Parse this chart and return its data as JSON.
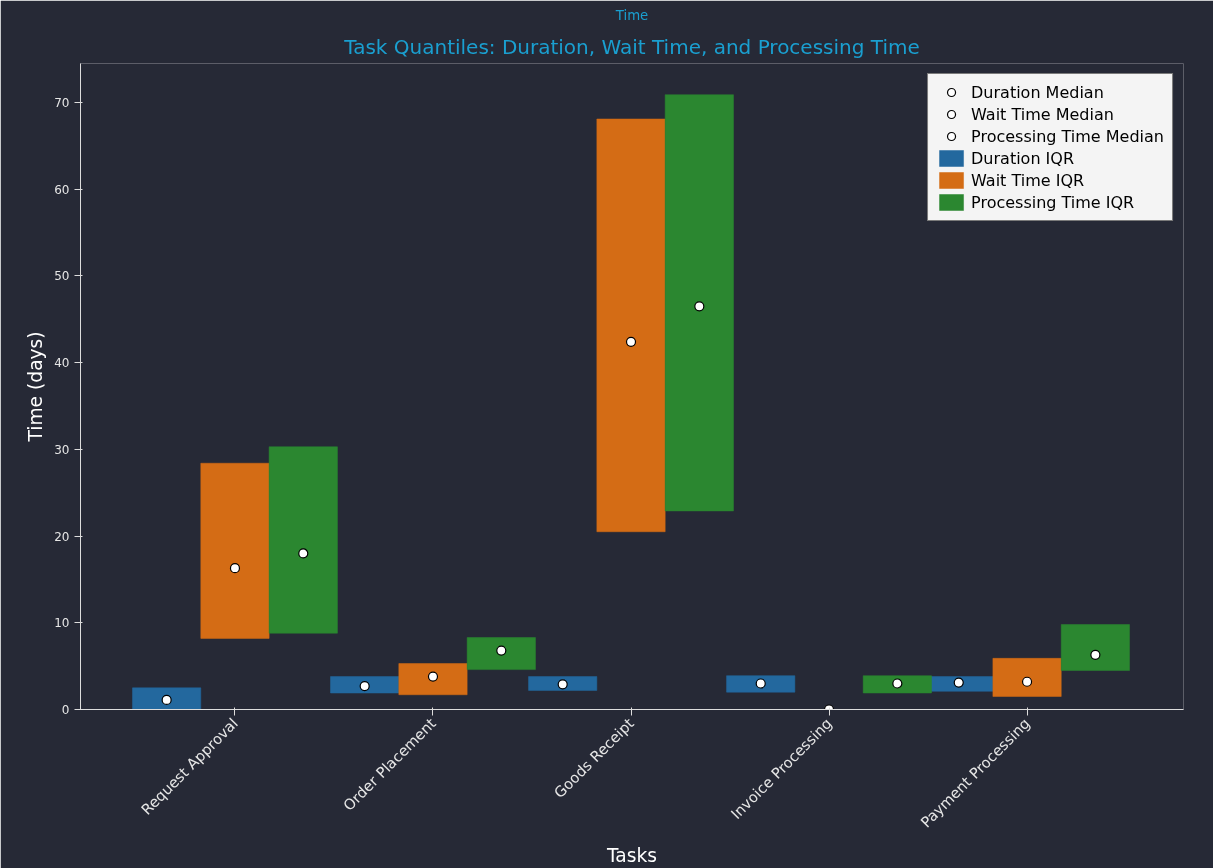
{
  "chart_data": {
    "type": "bar",
    "title": "Task Quantiles: Duration, Wait Time, and Processing Time",
    "xlabel": "Tasks",
    "ylabel": "Time (days)",
    "annotations": [
      "Time"
    ],
    "categories": [
      "Request Approval",
      "Order Placement",
      "Goods Receipt",
      "Invoice Processing",
      "Payment Processing"
    ],
    "ylim": [
      0,
      74.5
    ],
    "yticks": [
      0,
      10,
      20,
      30,
      40,
      50,
      60,
      70
    ],
    "grid": false,
    "legend": "top right",
    "marker": "circle",
    "series": [
      {
        "name": "Duration Median",
        "type": "scatter",
        "color": "#ffffff",
        "x": [
          "Request Approval",
          "Order Placement",
          "Goods Receipt",
          "Invoice Processing",
          "Payment Processing"
        ],
        "values": [
          1.1,
          2.7,
          2.9,
          3.0,
          3.1
        ]
      },
      {
        "name": "Wait Time Median",
        "type": "scatter",
        "color": "#ffffff",
        "x": [
          "Request Approval",
          "Order Placement",
          "Goods Receipt",
          "Invoice Processing",
          "Payment Processing"
        ],
        "values": [
          16.3,
          3.8,
          42.4,
          0,
          3.2
        ]
      },
      {
        "name": "Processing Time Median",
        "type": "scatter",
        "color": "#ffffff",
        "x": [
          "Request Approval",
          "Order Placement",
          "Goods Receipt",
          "Invoice Processing",
          "Payment Processing"
        ],
        "values": [
          18.0,
          6.8,
          46.5,
          3.0,
          6.3
        ]
      },
      {
        "name": "Duration IQR",
        "color": "#23689e",
        "base": [
          0,
          1.9,
          2.2,
          2.0,
          2.1
        ],
        "values": [
          2.5,
          1.9,
          1.6,
          1.9,
          1.7
        ]
      },
      {
        "name": "Wait Time IQR",
        "color": "#d46c15",
        "base": [
          8.2,
          1.7,
          20.5,
          0,
          1.5
        ],
        "values": [
          20.2,
          3.6,
          47.6,
          0,
          4.4
        ]
      },
      {
        "name": "Processing Time IQR",
        "color": "#2b8730",
        "base": [
          8.8,
          4.6,
          22.9,
          1.9,
          4.5
        ],
        "values": [
          21.5,
          3.7,
          48.0,
          2.0,
          5.3
        ]
      }
    ]
  }
}
